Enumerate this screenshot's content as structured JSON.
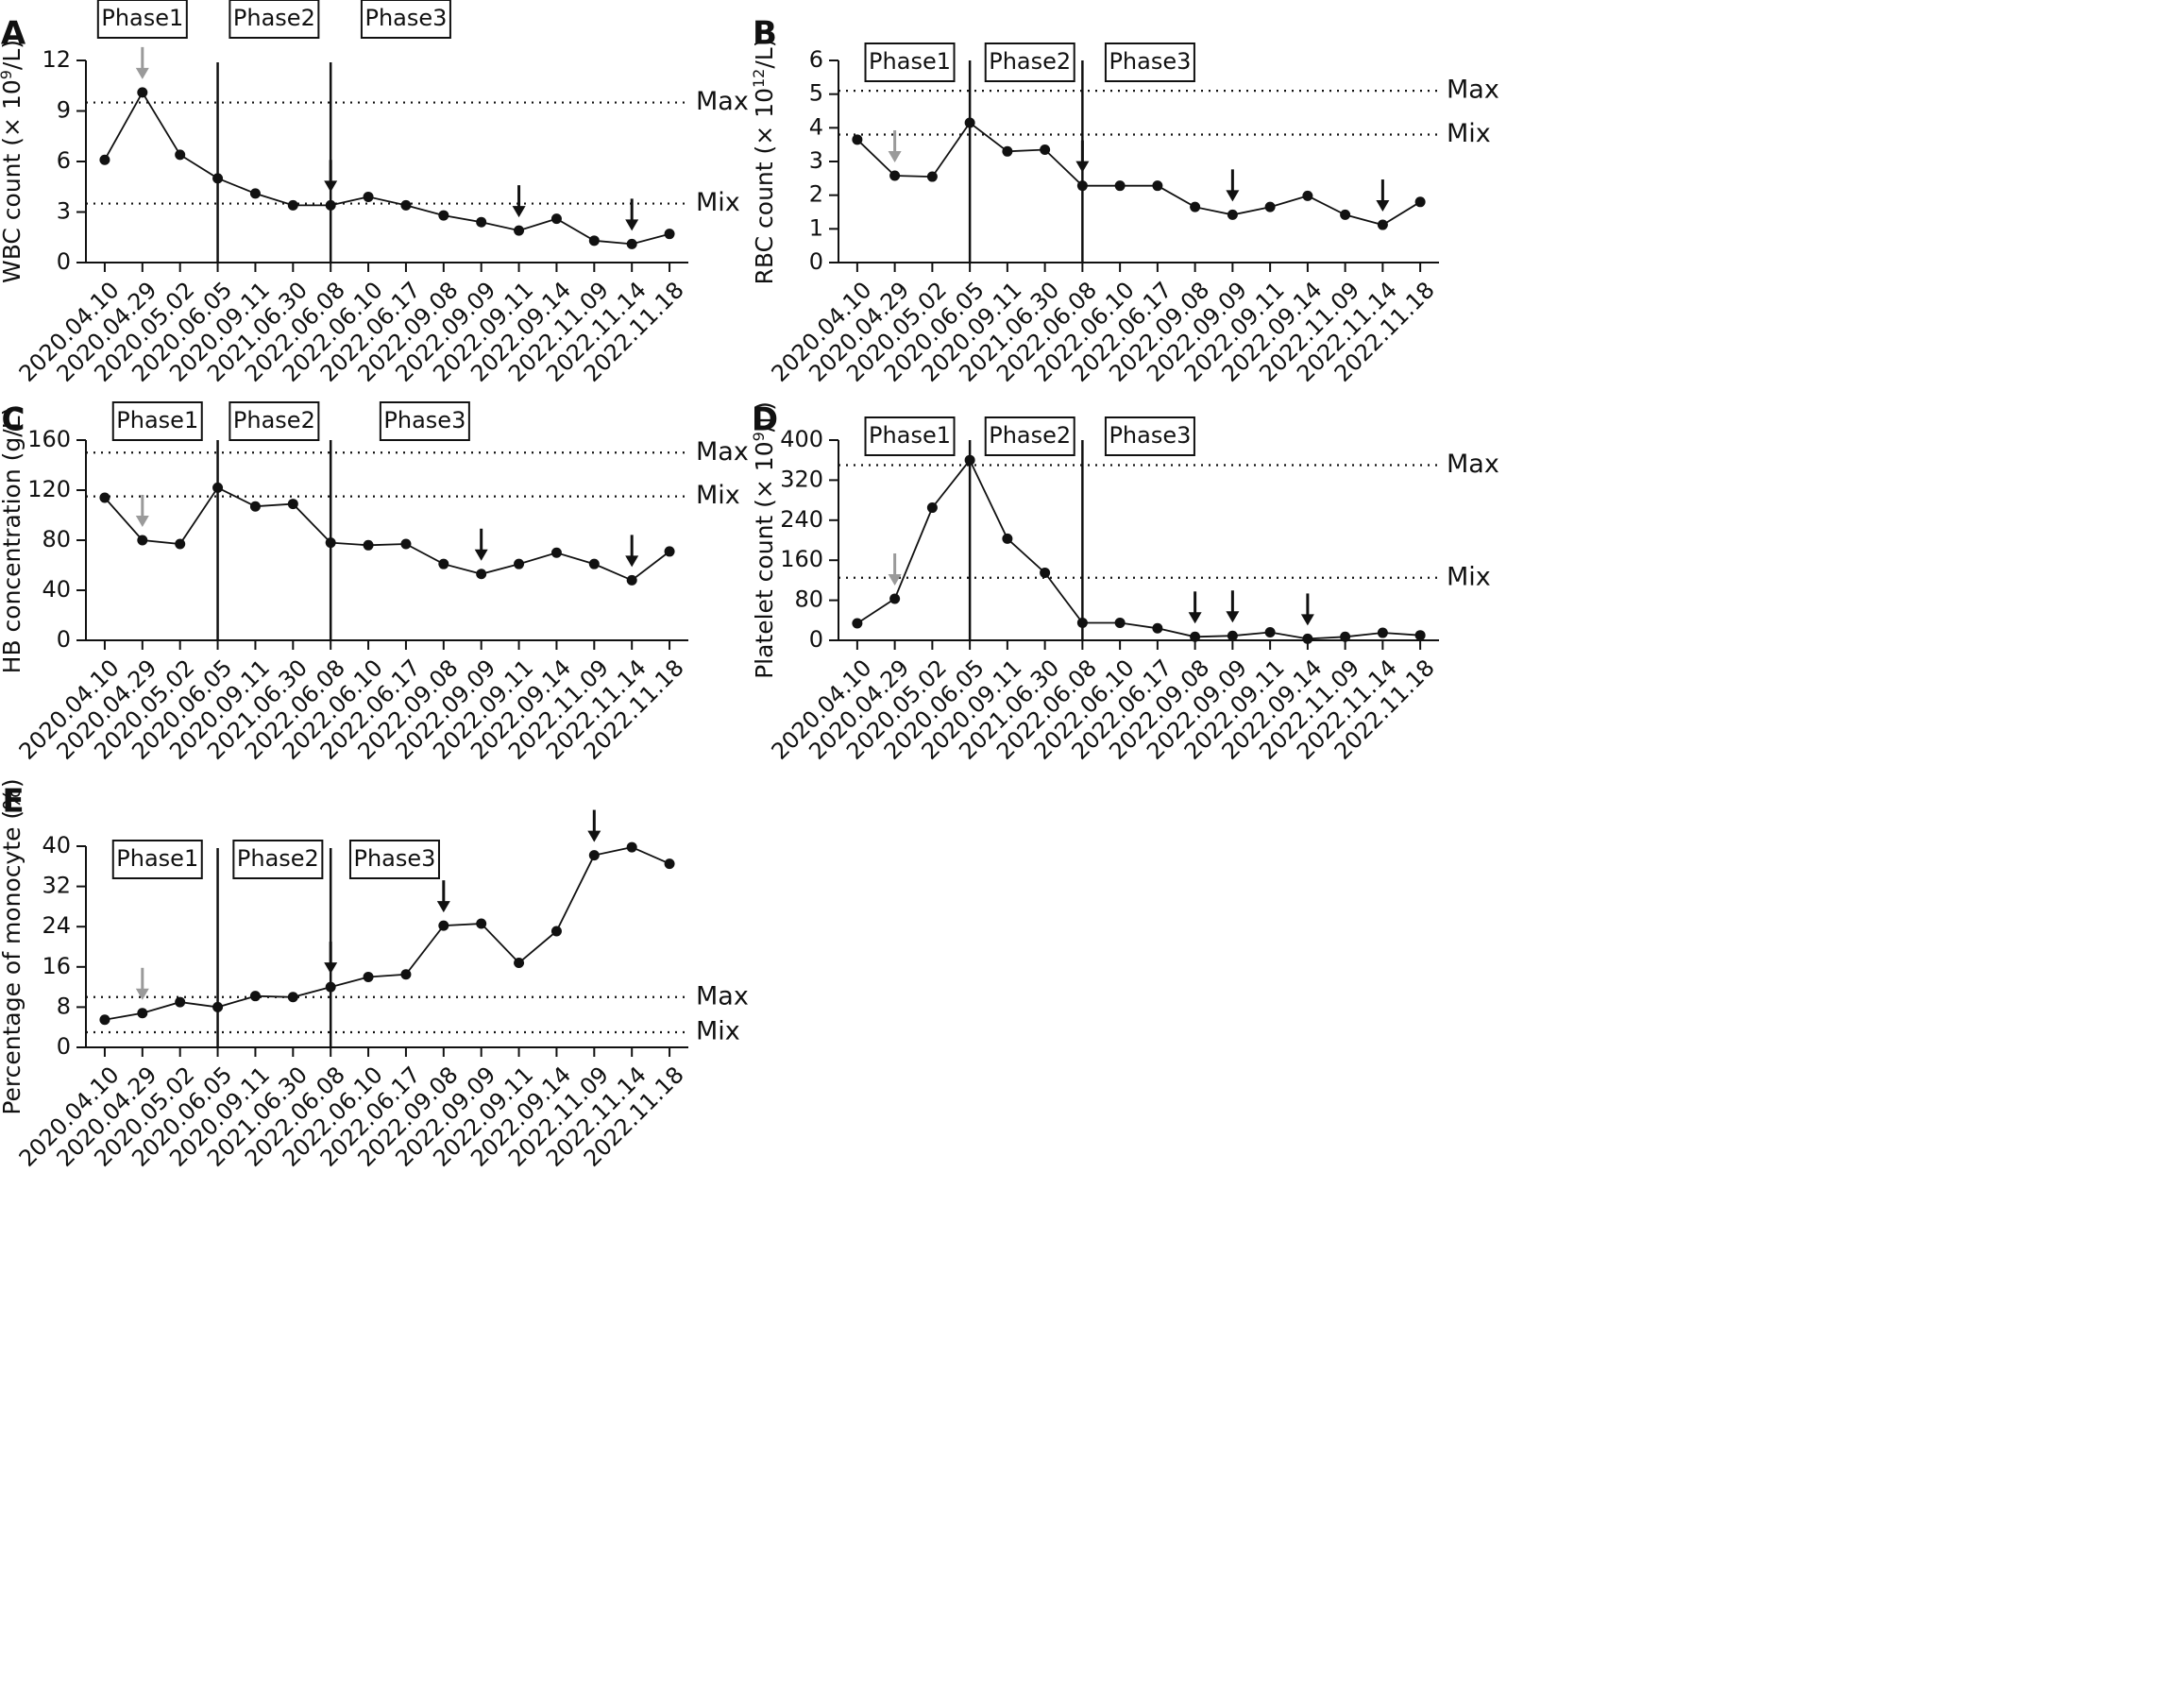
{
  "chart_data": [
    {
      "panel_label": "A",
      "type": "line",
      "ylabel_parts": [
        "WBC count (× 10",
        "9",
        "/L)"
      ],
      "ylim": [
        0,
        12
      ],
      "yticks": [
        0,
        3,
        6,
        9,
        12
      ],
      "categories": [
        "2020.04.10",
        "2020.04.29",
        "2020.05.02",
        "2020.06.05",
        "2020.09.11",
        "2021.06.30",
        "2022.06.08",
        "2022.06.10",
        "2022.06.17",
        "2022.09.08",
        "2022.09.09",
        "2022.09.11",
        "2022.09.14",
        "2022.11.09",
        "2022.11.14",
        "2022.11.18"
      ],
      "values": [
        6.1,
        10.1,
        6.4,
        5.0,
        4.1,
        3.4,
        3.4,
        3.9,
        3.4,
        2.8,
        2.4,
        1.9,
        2.6,
        1.3,
        1.1,
        1.7
      ],
      "reference_lines": [
        {
          "label": "Max",
          "value": 9.5
        },
        {
          "label": "Mix",
          "value": 3.5
        }
      ],
      "phase_dividers": [
        3,
        6
      ],
      "phases": [
        {
          "label": "Phase1",
          "at": 1
        },
        {
          "label": "Phase2",
          "at": 4.5
        },
        {
          "label": "Phase3",
          "at": 8
        }
      ],
      "arrows": [
        {
          "index": 1,
          "color": "gray"
        },
        {
          "index": 6,
          "color": "black"
        },
        {
          "index": 11,
          "color": "black"
        },
        {
          "index": 14,
          "color": "black"
        }
      ]
    },
    {
      "panel_label": "B",
      "type": "line",
      "ylabel_parts": [
        "RBC count (× 10",
        "12",
        "/L)"
      ],
      "ylim": [
        0,
        6
      ],
      "yticks": [
        0,
        1,
        2,
        3,
        4,
        5,
        6
      ],
      "categories": [
        "2020.04.10",
        "2020.04.29",
        "2020.05.02",
        "2020.06.05",
        "2020.09.11",
        "2021.06.30",
        "2022.06.08",
        "2022.06.10",
        "2022.06.17",
        "2022.09.08",
        "2022.09.09",
        "2022.09.11",
        "2022.09.14",
        "2022.11.09",
        "2022.11.14",
        "2022.11.18"
      ],
      "values": [
        3.65,
        2.58,
        2.55,
        4.15,
        3.3,
        3.35,
        2.28,
        2.28,
        2.28,
        1.65,
        1.42,
        1.65,
        1.98,
        1.42,
        1.12,
        1.8
      ],
      "reference_lines": [
        {
          "label": "Max",
          "value": 5.1
        },
        {
          "label": "Mix",
          "value": 3.8
        }
      ],
      "phase_dividers": [
        3,
        6
      ],
      "phases": [
        {
          "label": "Phase1",
          "at": 1.4
        },
        {
          "label": "Phase2",
          "at": 4.6
        },
        {
          "label": "Phase3",
          "at": 7.8
        }
      ],
      "arrows": [
        {
          "index": 1,
          "color": "gray"
        },
        {
          "index": 6,
          "color": "black"
        },
        {
          "index": 10,
          "color": "black"
        },
        {
          "index": 14,
          "color": "black"
        }
      ]
    },
    {
      "panel_label": "C",
      "type": "line",
      "ylabel_parts": [
        "HB concentration (g/L)"
      ],
      "ylim": [
        0,
        160
      ],
      "yticks": [
        0,
        40,
        80,
        120,
        160
      ],
      "categories": [
        "2020.04.10",
        "2020.04.29",
        "2020.05.02",
        "2020.06.05",
        "2020.09.11",
        "2021.06.30",
        "2022.06.08",
        "2022.06.10",
        "2022.06.17",
        "2022.09.08",
        "2022.09.09",
        "2022.09.11",
        "2022.09.14",
        "2022.11.09",
        "2022.11.14",
        "2022.11.18"
      ],
      "values": [
        114,
        80,
        77,
        122,
        107,
        109,
        78,
        76,
        77,
        61,
        53,
        61,
        70,
        61,
        48,
        71
      ],
      "reference_lines": [
        {
          "label": "Max",
          "value": 150
        },
        {
          "label": "Mix",
          "value": 115
        }
      ],
      "phase_dividers": [
        3,
        6
      ],
      "phases": [
        {
          "label": "Phase1",
          "at": 1.4
        },
        {
          "label": "Phase2",
          "at": 4.5
        },
        {
          "label": "Phase3",
          "at": 8.5
        }
      ],
      "arrows": [
        {
          "index": 1,
          "color": "gray"
        },
        {
          "index": 10,
          "color": "black"
        },
        {
          "index": 14,
          "color": "black"
        }
      ]
    },
    {
      "panel_label": "D",
      "type": "line",
      "ylabel_parts": [
        "Platelet count (× 10",
        "9",
        "/L)"
      ],
      "ylim": [
        0,
        400
      ],
      "yticks": [
        0,
        80,
        160,
        240,
        320,
        400
      ],
      "categories": [
        "2020.04.10",
        "2020.04.29",
        "2020.05.02",
        "2020.06.05",
        "2020.09.11",
        "2021.06.30",
        "2022.06.08",
        "2022.06.10",
        "2022.06.17",
        "2022.09.08",
        "2022.09.09",
        "2022.09.11",
        "2022.09.14",
        "2022.11.09",
        "2022.11.14",
        "2022.11.18"
      ],
      "values": [
        34,
        83,
        265,
        360,
        203,
        135,
        35,
        35,
        24,
        7,
        9,
        16,
        3,
        7,
        15,
        10
      ],
      "reference_lines": [
        {
          "label": "Max",
          "value": 350
        },
        {
          "label": "Mix",
          "value": 125
        }
      ],
      "phase_dividers": [
        3,
        6
      ],
      "phases": [
        {
          "label": "Phase1",
          "at": 1.4
        },
        {
          "label": "Phase2",
          "at": 4.6
        },
        {
          "label": "Phase3",
          "at": 7.8
        }
      ],
      "arrows": [
        {
          "index": 1,
          "color": "gray"
        },
        {
          "index": 9,
          "color": "black"
        },
        {
          "index": 10,
          "color": "black"
        },
        {
          "index": 12,
          "color": "black"
        }
      ]
    },
    {
      "panel_label": "E",
      "type": "line",
      "ylabel_parts": [
        "Percentage of monocyte (%)"
      ],
      "ylim": [
        0,
        40
      ],
      "yticks": [
        0,
        8,
        16,
        24,
        32,
        40
      ],
      "categories": [
        "2020.04.10",
        "2020.04.29",
        "2020.05.02",
        "2020.06.05",
        "2020.09.11",
        "2021.06.30",
        "2022.06.08",
        "2022.06.10",
        "2022.06.17",
        "2022.09.08",
        "2022.09.09",
        "2022.09.11",
        "2022.09.14",
        "2022.11.09",
        "2022.11.14",
        "2022.11.18"
      ],
      "values": [
        5.5,
        6.8,
        9.0,
        8.0,
        10.2,
        10.0,
        12.0,
        14.0,
        14.5,
        24.2,
        24.6,
        16.8,
        23.1,
        38.2,
        39.8,
        36.5
      ],
      "reference_lines": [
        {
          "label": "Max",
          "value": 10
        },
        {
          "label": "Mix",
          "value": 3
        }
      ],
      "phase_dividers": [
        3,
        6
      ],
      "phases": [
        {
          "label": "Phase1",
          "at": 1.4
        },
        {
          "label": "Phase2",
          "at": 4.6
        },
        {
          "label": "Phase3",
          "at": 7.7
        }
      ],
      "arrows": [
        {
          "index": 1,
          "color": "gray"
        },
        {
          "index": 6,
          "color": "black"
        },
        {
          "index": 9,
          "color": "black"
        },
        {
          "index": 13,
          "color": "black"
        }
      ]
    }
  ]
}
